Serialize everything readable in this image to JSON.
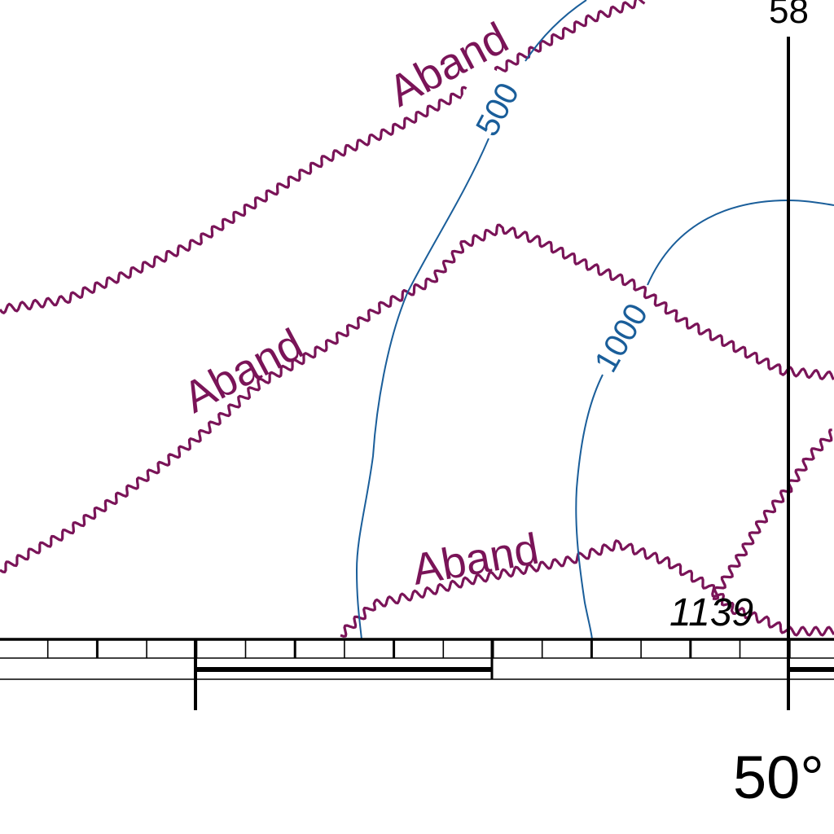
{
  "map": {
    "colors": {
      "abandoned": "#7a1458",
      "contour": "#1a5e9a",
      "frame": "#000000",
      "background": "#ffffff"
    },
    "abandoned_labels": [
      "Aband",
      "Aband",
      "Aband"
    ],
    "contour_labels": [
      "500",
      "1000"
    ],
    "spot_elevation": "1139",
    "top_right_label": "58",
    "latitude_label": "50°"
  }
}
